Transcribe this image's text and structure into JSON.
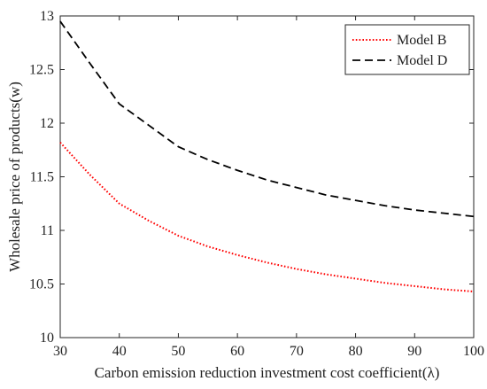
{
  "chart_data": {
    "type": "line",
    "xlabel": "Carbon emission reduction investment cost coefficient(λ)",
    "ylabel": "Wholesale price of products(w)",
    "xlim": [
      30,
      100
    ],
    "ylim": [
      10,
      13
    ],
    "xticks": [
      "30",
      "40",
      "50",
      "60",
      "70",
      "80",
      "90",
      "100"
    ],
    "yticks": [
      "10",
      "10.5",
      "11",
      "11.5",
      "12",
      "12.5",
      "13"
    ],
    "grid": false,
    "legend_position": "top-right",
    "series": [
      {
        "name": "Model B",
        "color": "#ff0000",
        "line_style": "dotted",
        "x": [
          30,
          35,
          40,
          45,
          50,
          55,
          60,
          65,
          70,
          75,
          80,
          85,
          90,
          95,
          100
        ],
        "y": [
          11.82,
          11.52,
          11.25,
          11.09,
          10.95,
          10.85,
          10.77,
          10.7,
          10.64,
          10.59,
          10.55,
          10.51,
          10.48,
          10.45,
          10.43
        ]
      },
      {
        "name": "Model D",
        "color": "#000000",
        "line_style": "dashed",
        "x": [
          30,
          35,
          40,
          45,
          50,
          55,
          60,
          65,
          70,
          75,
          80,
          85,
          90,
          95,
          100
        ],
        "y": [
          12.95,
          12.56,
          12.18,
          11.98,
          11.78,
          11.66,
          11.56,
          11.47,
          11.4,
          11.33,
          11.28,
          11.23,
          11.19,
          11.16,
          11.13
        ]
      }
    ]
  }
}
